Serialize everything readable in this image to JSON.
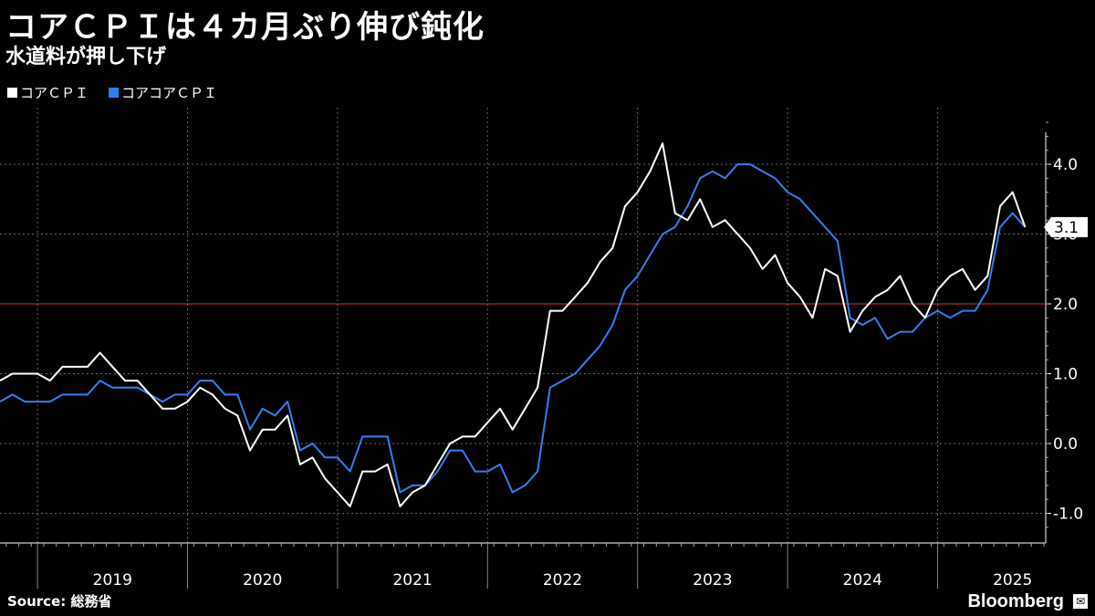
{
  "title": "コアＣＰＩは４カ月ぶり伸び鈍化",
  "subtitle": "水道料が押し下げ",
  "source": "Source:  総務省",
  "brand": "Bloomberg",
  "brand_mark": "✉",
  "colors": {
    "background": "#000000",
    "core": "#ffffff",
    "core_core": "#2f80ed",
    "reference": "#e03030",
    "grid": "#666666"
  },
  "chart_data": {
    "type": "line",
    "title": "コアＣＰＩは４カ月ぶり伸び鈍化",
    "subtitle": "水道料が押し下げ",
    "ylim": [
      -1.4,
      4.9
    ],
    "yticks": [
      -1.0,
      0.0,
      1.0,
      2.0,
      3.0,
      4.0
    ],
    "ytick_labels": [
      "-1.0",
      "0.0",
      "1.0",
      "2.0",
      "3.0",
      "4.0"
    ],
    "xlabels": [
      "2019",
      "2020",
      "2021",
      "2022",
      "2023",
      "2024",
      "2025"
    ],
    "start": "2018-10",
    "reference_line": 2.0,
    "last_value_label": "3.1",
    "legend": [
      "コアＣＰＩ",
      "コアコアＣＰＩ"
    ],
    "series": [
      {
        "name": "コアＣＰＩ",
        "color": "#ffffff",
        "values": [
          0.9,
          1.0,
          1.0,
          1.0,
          0.9,
          1.1,
          1.1,
          1.1,
          1.3,
          1.1,
          0.9,
          0.9,
          0.7,
          0.5,
          0.5,
          0.6,
          0.8,
          0.7,
          0.5,
          0.4,
          -0.1,
          0.2,
          0.2,
          0.4,
          -0.3,
          -0.2,
          -0.5,
          -0.7,
          -0.9,
          -0.4,
          -0.4,
          -0.3,
          -0.9,
          -0.7,
          -0.6,
          -0.3,
          0.0,
          0.1,
          0.1,
          0.3,
          0.5,
          0.2,
          0.5,
          0.8,
          1.9,
          1.9,
          2.1,
          2.3,
          2.6,
          2.8,
          3.4,
          3.6,
          3.9,
          4.3,
          3.3,
          3.2,
          3.5,
          3.1,
          3.2,
          3.0,
          2.8,
          2.5,
          2.7,
          2.3,
          2.1,
          1.8,
          2.5,
          2.4,
          1.6,
          1.9,
          2.1,
          2.2,
          2.4,
          2.0,
          1.8,
          2.2,
          2.4,
          2.5,
          2.2,
          2.4,
          3.4,
          3.6,
          3.1
        ]
      },
      {
        "name": "コアコアＣＰＩ",
        "color": "#2f80ed",
        "values": [
          0.6,
          0.7,
          0.6,
          0.6,
          0.6,
          0.7,
          0.7,
          0.7,
          0.9,
          0.8,
          0.8,
          0.8,
          0.7,
          0.6,
          0.7,
          0.7,
          0.9,
          0.9,
          0.7,
          0.7,
          0.2,
          0.5,
          0.4,
          0.6,
          -0.1,
          0.0,
          -0.2,
          -0.2,
          -0.4,
          0.1,
          0.1,
          0.1,
          -0.7,
          -0.6,
          -0.6,
          -0.4,
          -0.1,
          -0.1,
          -0.4,
          -0.4,
          -0.3,
          -0.7,
          -0.6,
          -0.4,
          0.8,
          0.9,
          1.0,
          1.2,
          1.4,
          1.7,
          2.2,
          2.4,
          2.7,
          3.0,
          3.1,
          3.4,
          3.8,
          3.9,
          3.8,
          4.0,
          4.0,
          3.9,
          3.8,
          3.6,
          3.5,
          3.3,
          3.1,
          2.9,
          1.8,
          1.7,
          1.8,
          1.5,
          1.6,
          1.6,
          1.8,
          1.9,
          1.8,
          1.9,
          1.9,
          2.2,
          3.1,
          3.3,
          3.1
        ]
      }
    ]
  }
}
